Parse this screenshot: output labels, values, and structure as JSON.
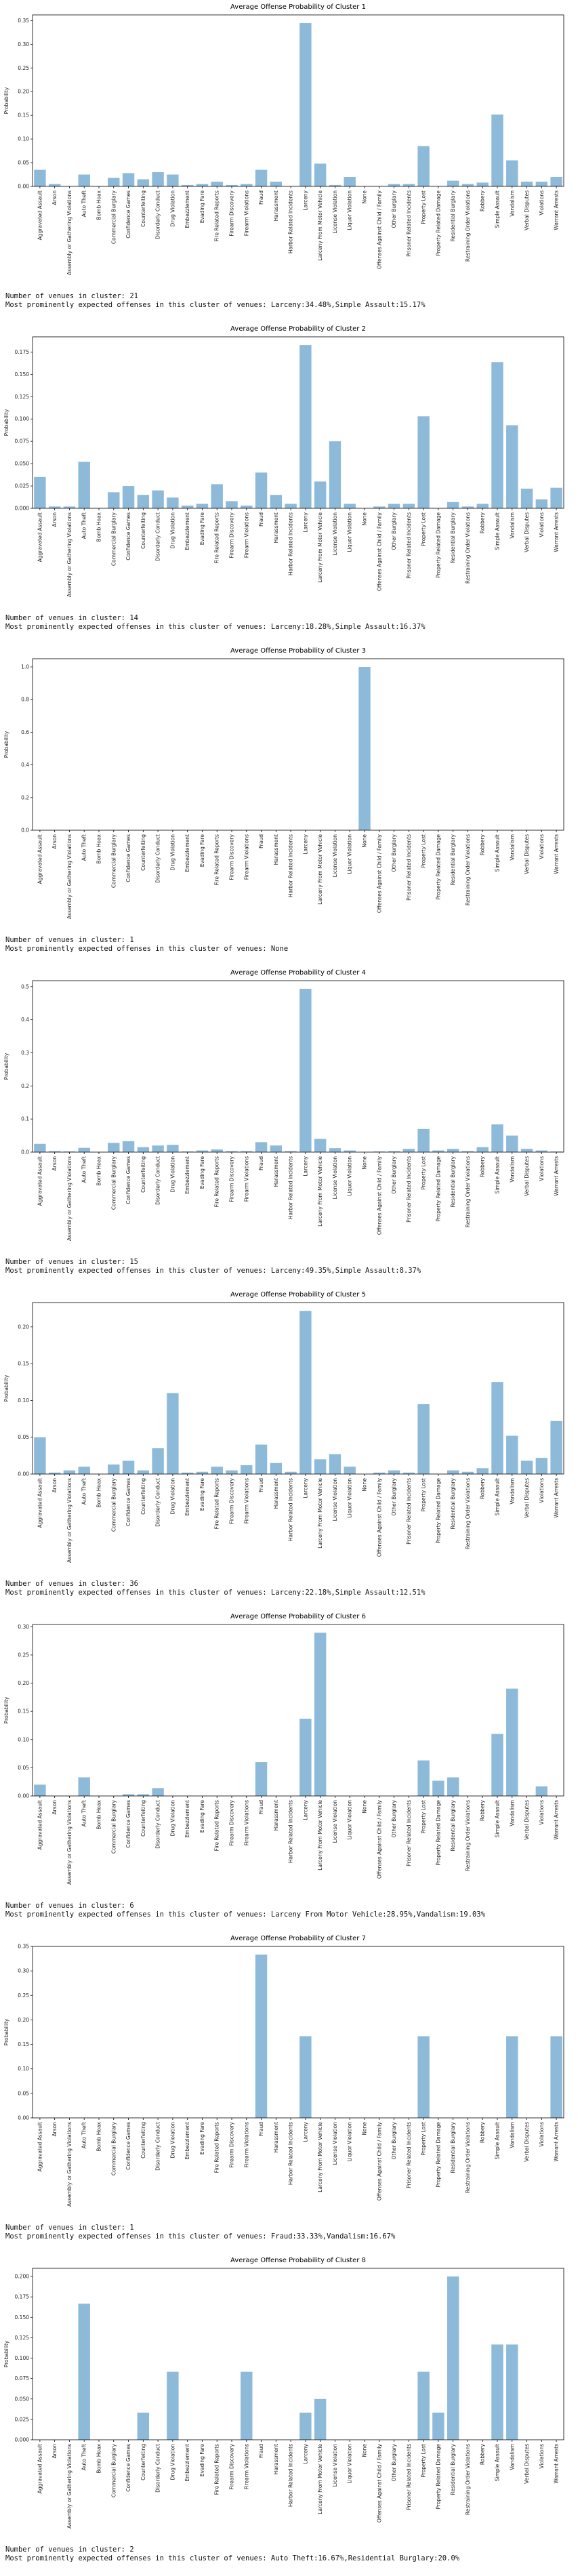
{
  "chart_data": [
    {
      "type": "bar",
      "title": "Average Offense Probability of Cluster 1",
      "ylabel": "Probability",
      "color": "#8ebad9",
      "categories": [
        "Aggravated Assault",
        "Arson",
        "Assembly or Gathering Violations",
        "Auto Theft",
        "Bomb Hoax",
        "Commercial Burglary",
        "Confidence Games",
        "Counterfeiting",
        "Disorderly Conduct",
        "Drug Violation",
        "Embezzlement",
        "Evading Fare",
        "Fire Related Reports",
        "Firearm Discovery",
        "Firearm Violations",
        "Fraud",
        "Harassment",
        "Harbor Related Incidents",
        "Larceny",
        "Larceny From Motor Vehicle",
        "License Violation",
        "Liquor Violation",
        "None",
        "Offenses Against Child / Family",
        "Other Burglary",
        "Prisoner Related Incidents",
        "Property Lost",
        "Property Related Damage",
        "Residential Burglary",
        "Restraining Order Violations",
        "Robbery",
        "Simple Assault",
        "Vandalism",
        "Verbal Disputes",
        "Violations",
        "Warrant Arrests"
      ],
      "values": [
        0.035,
        0.005,
        0,
        0.025,
        0,
        0.018,
        0.028,
        0.015,
        0.03,
        0.025,
        0.003,
        0.005,
        0.01,
        0.003,
        0.005,
        0.035,
        0.01,
        0,
        0.3448,
        0.048,
        0.003,
        0.02,
        0,
        0,
        0.005,
        0.005,
        0.085,
        0,
        0.012,
        0.005,
        0.008,
        0.1517,
        0.055,
        0.01,
        0.01,
        0.02
      ],
      "ylim": [
        0,
        0.362
      ],
      "yticks": [
        {
          "value": 0,
          "label": "0.00"
        },
        0.05,
        {
          "value": 0.1,
          "label": "0.10"
        },
        0.15,
        {
          "value": 0.2,
          "label": "0.20"
        },
        0.25,
        {
          "value": 0.3,
          "label": "0.30"
        },
        0.35
      ],
      "captions": [
        "Number of venues in cluster: 21",
        "Most prominently expected offenses in this cluster of venues: Larceny:34.48%,Simple Assault:15.17%"
      ]
    },
    {
      "type": "bar",
      "title": "Average Offense Probability of Cluster 2",
      "ylabel": "Probability",
      "color": "#8ebad9",
      "categories": [
        "Aggravated Assault",
        "Arson",
        "Assembly or Gathering Violations",
        "Auto Theft",
        "Bomb Hoax",
        "Commercial Burglary",
        "Confidence Games",
        "Counterfeiting",
        "Disorderly Conduct",
        "Drug Violation",
        "Embezzlement",
        "Evading Fare",
        "Fire Related Reports",
        "Firearm Discovery",
        "Firearm Violations",
        "Fraud",
        "Harassment",
        "Harbor Related Incidents",
        "Larceny",
        "Larceny From Motor Vehicle",
        "License Violation",
        "Liquor Violation",
        "None",
        "Offenses Against Child / Family",
        "Other Burglary",
        "Prisoner Related Incidents",
        "Property Lost",
        "Property Related Damage",
        "Residential Burglary",
        "Restraining Order Violations",
        "Robbery",
        "Simple Assault",
        "Vandalism",
        "Verbal Disputes",
        "Violations",
        "Warrant Arrests"
      ],
      "values": [
        0.035,
        0.002,
        0.002,
        0.052,
        0,
        0.018,
        0.025,
        0.015,
        0.02,
        0.012,
        0.003,
        0.005,
        0.027,
        0.008,
        0.003,
        0.04,
        0.015,
        0.005,
        0.1828,
        0.03,
        0.075,
        0.005,
        0,
        0.002,
        0.005,
        0.005,
        0.103,
        0,
        0.007,
        0.002,
        0.005,
        0.1637,
        0.093,
        0.022,
        0.01,
        0.023
      ],
      "ylim": [
        0,
        0.192
      ],
      "yticks": [
        {
          "value": 0,
          "label": "0.000"
        },
        0.025,
        {
          "value": 0.05,
          "label": "0.050"
        },
        0.075,
        {
          "value": 0.1,
          "label": "0.100"
        },
        0.125,
        {
          "value": 0.15,
          "label": "0.150"
        },
        0.175
      ],
      "captions": [
        "Number of venues in cluster: 14",
        "Most prominently expected offenses in this cluster of venues: Larceny:18.28%,Simple Assault:16.37%"
      ]
    },
    {
      "type": "bar",
      "title": "Average Offense Probability of Cluster 3",
      "ylabel": "Probability",
      "color": "#8ebad9",
      "categories": [
        "Aggravated Assault",
        "Arson",
        "Assembly or Gathering Violations",
        "Auto Theft",
        "Bomb Hoax",
        "Commercial Burglary",
        "Confidence Games",
        "Counterfeiting",
        "Disorderly Conduct",
        "Drug Violation",
        "Embezzlement",
        "Evading Fare",
        "Fire Related Reports",
        "Firearm Discovery",
        "Firearm Violations",
        "Fraud",
        "Harassment",
        "Harbor Related Incidents",
        "Larceny",
        "Larceny From Motor Vehicle",
        "License Violation",
        "Liquor Violation",
        "None",
        "Offenses Against Child / Family",
        "Other Burglary",
        "Prisoner Related Incidents",
        "Property Lost",
        "Property Related Damage",
        "Residential Burglary",
        "Restraining Order Violations",
        "Robbery",
        "Simple Assault",
        "Vandalism",
        "Verbal Disputes",
        "Violations",
        "Warrant Arrests"
      ],
      "values": [
        0,
        0,
        0,
        0,
        0,
        0,
        0,
        0,
        0,
        0,
        0,
        0,
        0,
        0,
        0,
        0,
        0,
        0,
        0,
        0,
        0,
        0,
        1.0,
        0,
        0,
        0,
        0,
        0,
        0,
        0,
        0,
        0,
        0,
        0,
        0,
        0
      ],
      "ylim": [
        0,
        1.05
      ],
      "yticks": [
        {
          "value": 0,
          "label": "0.0"
        },
        0.2,
        0.4,
        0.6,
        0.8,
        {
          "value": 1,
          "label": "1.0"
        }
      ],
      "captions": [
        "Number of venues in cluster: 1",
        "Most prominently expected offenses in this cluster of venues: None"
      ]
    },
    {
      "type": "bar",
      "title": "Average Offense Probability of Cluster 4",
      "ylabel": "Probability",
      "color": "#8ebad9",
      "categories": [
        "Aggravated Assault",
        "Arson",
        "Assembly or Gathering Violations",
        "Auto Theft",
        "Bomb Hoax",
        "Commercial Burglary",
        "Confidence Games",
        "Counterfeiting",
        "Disorderly Conduct",
        "Drug Violation",
        "Embezzlement",
        "Evading Fare",
        "Fire Related Reports",
        "Firearm Discovery",
        "Firearm Violations",
        "Fraud",
        "Harassment",
        "Harbor Related Incidents",
        "Larceny",
        "Larceny From Motor Vehicle",
        "License Violation",
        "Liquor Violation",
        "None",
        "Offenses Against Child / Family",
        "Other Burglary",
        "Prisoner Related Incidents",
        "Property Lost",
        "Property Related Damage",
        "Residential Burglary",
        "Restraining Order Violations",
        "Robbery",
        "Simple Assault",
        "Vandalism",
        "Verbal Disputes",
        "Violations",
        "Warrant Arrests"
      ],
      "values": [
        0.025,
        0.003,
        0.002,
        0.013,
        0,
        0.028,
        0.033,
        0.015,
        0.02,
        0.022,
        0.002,
        0.005,
        0.008,
        0.003,
        0.003,
        0.03,
        0.02,
        0.003,
        0.4935,
        0.04,
        0.012,
        0.005,
        0,
        0.002,
        0.003,
        0.01,
        0.07,
        0.005,
        0.01,
        0.003,
        0.015,
        0.0837,
        0.05,
        0.01,
        0.005,
        0.002
      ],
      "ylim": [
        0,
        0.518
      ],
      "yticks": [
        {
          "value": 0,
          "label": "0.0"
        },
        0.1,
        0.2,
        0.3,
        0.4,
        0.5
      ],
      "captions": [
        "Number of venues in cluster: 15",
        "Most prominently expected offenses in this cluster of venues: Larceny:49.35%,Simple Assault:8.37%"
      ]
    },
    {
      "type": "bar",
      "title": "Average Offense Probability of Cluster 5",
      "ylabel": "Probability",
      "color": "#8ebad9",
      "categories": [
        "Aggravated Assault",
        "Arson",
        "Assembly or Gathering Violations",
        "Auto Theft",
        "Bomb Hoax",
        "Commercial Burglary",
        "Confidence Games",
        "Counterfeiting",
        "Disorderly Conduct",
        "Drug Violation",
        "Embezzlement",
        "Evading Fare",
        "Fire Related Reports",
        "Firearm Discovery",
        "Firearm Violations",
        "Fraud",
        "Harassment",
        "Harbor Related Incidents",
        "Larceny",
        "Larceny From Motor Vehicle",
        "License Violation",
        "Liquor Violation",
        "None",
        "Offenses Against Child / Family",
        "Other Burglary",
        "Prisoner Related Incidents",
        "Property Lost",
        "Property Related Damage",
        "Residential Burglary",
        "Restraining Order Violations",
        "Robbery",
        "Simple Assault",
        "Vandalism",
        "Verbal Disputes",
        "Violations",
        "Warrant Arrests"
      ],
      "values": [
        0.05,
        0.002,
        0.005,
        0.01,
        0,
        0.013,
        0.018,
        0.005,
        0.035,
        0.11,
        0.002,
        0.003,
        0.01,
        0.005,
        0.012,
        0.04,
        0.015,
        0.003,
        0.2218,
        0.02,
        0.027,
        0.01,
        0,
        0.002,
        0.005,
        0.002,
        0.095,
        0,
        0.005,
        0.003,
        0.008,
        0.1251,
        0.052,
        0.018,
        0.022,
        0.072
      ],
      "ylim": [
        0,
        0.233
      ],
      "yticks": [
        {
          "value": 0,
          "label": "0.00"
        },
        0.05,
        {
          "value": 0.1,
          "label": "0.10"
        },
        0.15,
        {
          "value": 0.2,
          "label": "0.20"
        }
      ],
      "captions": [
        "Number of venues in cluster: 36",
        "Most prominently expected offenses in this cluster of venues: Larceny:22.18%,Simple Assault:12.51%"
      ]
    },
    {
      "type": "bar",
      "title": "Average Offense Probability of Cluster 6",
      "ylabel": "Probability",
      "color": "#8ebad9",
      "categories": [
        "Aggravated Assault",
        "Arson",
        "Assembly or Gathering Violations",
        "Auto Theft",
        "Bomb Hoax",
        "Commercial Burglary",
        "Confidence Games",
        "Counterfeiting",
        "Disorderly Conduct",
        "Drug Violation",
        "Embezzlement",
        "Evading Fare",
        "Fire Related Reports",
        "Firearm Discovery",
        "Firearm Violations",
        "Fraud",
        "Harassment",
        "Harbor Related Incidents",
        "Larceny",
        "Larceny From Motor Vehicle",
        "License Violation",
        "Liquor Violation",
        "None",
        "Offenses Against Child / Family",
        "Other Burglary",
        "Prisoner Related Incidents",
        "Property Lost",
        "Property Related Damage",
        "Residential Burglary",
        "Restraining Order Violations",
        "Robbery",
        "Simple Assault",
        "Vandalism",
        "Verbal Disputes",
        "Violations",
        "Warrant Arrests"
      ],
      "values": [
        0.02,
        0,
        0,
        0.033,
        0,
        0,
        0.003,
        0.003,
        0.014,
        0,
        0,
        0,
        0,
        0,
        0,
        0.06,
        0,
        0,
        0.137,
        0.2895,
        0,
        0,
        0,
        0,
        0,
        0,
        0.063,
        0.027,
        0.033,
        0,
        0,
        0.11,
        0.1903,
        0,
        0.017,
        0
      ],
      "ylim": [
        0,
        0.304
      ],
      "yticks": [
        {
          "value": 0,
          "label": "0.00"
        },
        0.05,
        {
          "value": 0.1,
          "label": "0.10"
        },
        0.15,
        {
          "value": 0.2,
          "label": "0.20"
        },
        0.25,
        {
          "value": 0.3,
          "label": "0.30"
        }
      ],
      "captions": [
        "Number of venues in cluster: 6",
        "Most prominently expected offenses in this cluster of venues: Larceny From Motor Vehicle:28.95%,Vandalism:19.03%"
      ]
    },
    {
      "type": "bar",
      "title": "Average Offense Probability of Cluster 7",
      "ylabel": "Probability",
      "color": "#8ebad9",
      "categories": [
        "Aggravated Assault",
        "Arson",
        "Assembly or Gathering Violations",
        "Auto Theft",
        "Bomb Hoax",
        "Commercial Burglary",
        "Confidence Games",
        "Counterfeiting",
        "Disorderly Conduct",
        "Drug Violation",
        "Embezzlement",
        "Evading Fare",
        "Fire Related Reports",
        "Firearm Discovery",
        "Firearm Violations",
        "Fraud",
        "Harassment",
        "Harbor Related Incidents",
        "Larceny",
        "Larceny From Motor Vehicle",
        "License Violation",
        "Liquor Violation",
        "None",
        "Offenses Against Child / Family",
        "Other Burglary",
        "Prisoner Related Incidents",
        "Property Lost",
        "Property Related Damage",
        "Residential Burglary",
        "Restraining Order Violations",
        "Robbery",
        "Simple Assault",
        "Vandalism",
        "Verbal Disputes",
        "Violations",
        "Warrant Arrests"
      ],
      "values": [
        0,
        0,
        0,
        0,
        0,
        0,
        0,
        0,
        0,
        0,
        0,
        0,
        0,
        0,
        0,
        0.3333,
        0,
        0,
        0.1667,
        0,
        0,
        0,
        0,
        0,
        0,
        0,
        0.1667,
        0,
        0,
        0,
        0,
        0,
        0.1667,
        0,
        0,
        0.1667
      ],
      "ylim": [
        0,
        0.35
      ],
      "yticks": [
        {
          "value": 0,
          "label": "0.00"
        },
        0.05,
        {
          "value": 0.1,
          "label": "0.10"
        },
        0.15,
        {
          "value": 0.2,
          "label": "0.20"
        },
        0.25,
        {
          "value": 0.3,
          "label": "0.30"
        },
        0.35
      ],
      "captions": [
        "Number of venues in cluster: 1",
        "Most prominently expected offenses in this cluster of venues: Fraud:33.33%,Vandalism:16.67%"
      ]
    },
    {
      "type": "bar",
      "title": "Average Offense Probability of Cluster 8",
      "ylabel": "Probability",
      "color": "#8ebad9",
      "categories": [
        "Aggravated Assault",
        "Arson",
        "Assembly or Gathering Violations",
        "Auto Theft",
        "Bomb Hoax",
        "Commercial Burglary",
        "Confidence Games",
        "Counterfeiting",
        "Disorderly Conduct",
        "Drug Violation",
        "Embezzlement",
        "Evading Fare",
        "Fire Related Reports",
        "Firearm Discovery",
        "Firearm Violations",
        "Fraud",
        "Harassment",
        "Harbor Related Incidents",
        "Larceny",
        "Larceny From Motor Vehicle",
        "License Violation",
        "Liquor Violation",
        "None",
        "Offenses Against Child / Family",
        "Other Burglary",
        "Prisoner Related Incidents",
        "Property Lost",
        "Property Related Damage",
        "Residential Burglary",
        "Restraining Order Violations",
        "Robbery",
        "Simple Assault",
        "Vandalism",
        "Verbal Disputes",
        "Violations",
        "Warrant Arrests"
      ],
      "values": [
        0,
        0,
        0,
        0.1667,
        0,
        0,
        0,
        0.0333,
        0,
        0.0833,
        0,
        0,
        0,
        0,
        0.0833,
        0,
        0,
        0,
        0.0333,
        0.05,
        0,
        0,
        0,
        0,
        0,
        0,
        0.0833,
        0.0333,
        0.2,
        0,
        0,
        0.1167,
        0.1167,
        0,
        0,
        0
      ],
      "ylim": [
        0,
        0.21
      ],
      "yticks": [
        {
          "value": 0,
          "label": "0.000"
        },
        0.025,
        {
          "value": 0.05,
          "label": "0.050"
        },
        0.075,
        {
          "value": 0.1,
          "label": "0.100"
        },
        0.125,
        {
          "value": 0.15,
          "label": "0.150"
        },
        0.175,
        {
          "value": 0.2,
          "label": "0.200"
        }
      ],
      "captions": [
        "Number of venues in cluster: 2",
        "Most prominently expected offenses in this cluster of venues: Auto Theft:16.67%,Residential Burglary:20.0%"
      ]
    }
  ]
}
